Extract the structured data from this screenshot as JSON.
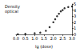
{
  "chart_data": {
    "type": "scatter",
    "y_label": "Density optical",
    "x_label": "lg (dose)",
    "x": [
      0.1,
      0.5,
      1.0,
      1.3,
      1.6,
      1.8,
      2.0,
      2.1,
      2.2,
      2.3,
      2.4,
      2.5,
      2.6,
      2.8,
      3.0
    ],
    "values": [
      0.05,
      0.1,
      0.2,
      0.3,
      0.6,
      1.2,
      2.0,
      2.5,
      3.0,
      3.4,
      3.8,
      4.0,
      4.3,
      4.5,
      4.6
    ],
    "color": "#000000",
    "marker": "circle",
    "xlim": [
      0,
      3
    ],
    "xticks": [
      {
        "value": 0,
        "label": "0.0"
      },
      {
        "value": 0.5,
        "label": "0.5"
      },
      {
        "value": 1,
        "label": "1.0"
      },
      {
        "value": 1.5,
        "label": "1.5"
      },
      {
        "value": 2,
        "label": "2.0"
      },
      {
        "value": 2.5,
        "label": "2.5"
      },
      {
        "value": 3,
        "label": "3.0"
      }
    ],
    "ylim": [
      0,
      5
    ],
    "yticks": [
      0,
      1,
      2,
      3,
      4,
      5
    ],
    "grid": false
  }
}
